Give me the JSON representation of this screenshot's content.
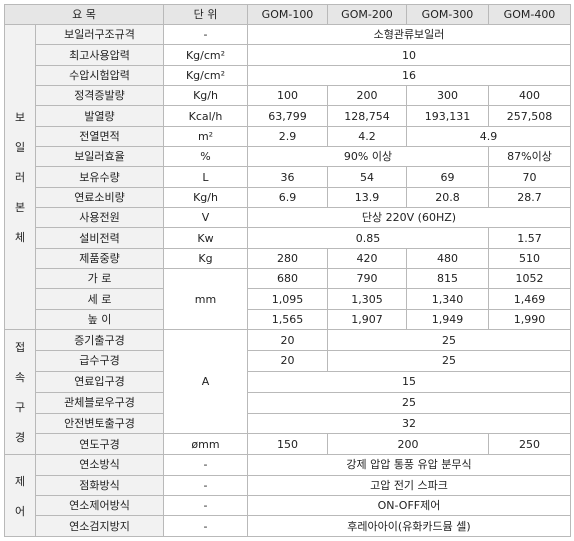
{
  "header": {
    "item": "요 목",
    "unit": "단 위",
    "models": [
      "GOM-100",
      "GOM-200",
      "GOM-300",
      "GOM-400"
    ]
  },
  "groups": {
    "body": [
      "보",
      "일",
      "러",
      "본",
      "체"
    ],
    "connection": [
      "접",
      "속",
      "구",
      "경"
    ],
    "control": [
      "제",
      "어"
    ]
  },
  "rows": {
    "r0": {
      "label": "보일러구조규격",
      "unit": "-",
      "v": [
        "소형관류보일러"
      ]
    },
    "r1": {
      "label": "최고사용압력",
      "unit": "Kg/cm²",
      "v": [
        "10"
      ]
    },
    "r2": {
      "label": "수압시험압력",
      "unit": "Kg/cm²",
      "v": [
        "16"
      ]
    },
    "r3": {
      "label": "정격증발량",
      "unit": "Kg/h",
      "v": [
        "100",
        "200",
        "300",
        "400"
      ]
    },
    "r4": {
      "label": "발열량",
      "unit": "Kcal/h",
      "v": [
        "63,799",
        "128,754",
        "193,131",
        "257,508"
      ]
    },
    "r5": {
      "label": "전열면적",
      "unit": "m²",
      "v": [
        "2.9",
        "4.2",
        "4.9"
      ]
    },
    "r6": {
      "label": "보일러효율",
      "unit": "%",
      "v": [
        "90% 이상",
        "87%이상"
      ]
    },
    "r7": {
      "label": "보유수량",
      "unit": "L",
      "v": [
        "36",
        "54",
        "69",
        "70"
      ]
    },
    "r8": {
      "label": "연료소비량",
      "unit": "Kg/h",
      "v": [
        "6.9",
        "13.9",
        "20.8",
        "28.7"
      ]
    },
    "r9": {
      "label": "사용전원",
      "unit": "V",
      "v": [
        "단상 220V (60HZ)"
      ]
    },
    "r10": {
      "label": "설비전력",
      "unit": "Kw",
      "v": [
        "0.85",
        "1.57"
      ]
    },
    "r11": {
      "label": "제품중량",
      "unit": "Kg",
      "v": [
        "280",
        "420",
        "480",
        "510"
      ]
    },
    "r12": {
      "label": "가 로",
      "unit": "mm",
      "v": [
        "680",
        "790",
        "815",
        "1052"
      ]
    },
    "r13": {
      "label": "세 로",
      "v": [
        "1,095",
        "1,305",
        "1,340",
        "1,469"
      ]
    },
    "r14": {
      "label": "높 이",
      "v": [
        "1,565",
        "1,907",
        "1,949",
        "1,990"
      ]
    },
    "r15": {
      "label": "증기출구경",
      "unit": "A",
      "v": [
        "20",
        "25"
      ]
    },
    "r16": {
      "label": "급수구경",
      "v": [
        "20",
        "25"
      ]
    },
    "r17": {
      "label": "연료입구경",
      "v": [
        "15"
      ]
    },
    "r18": {
      "label": "관체블로우구경",
      "v": [
        "25"
      ]
    },
    "r19": {
      "label": "안전변토출구경",
      "v": [
        "32"
      ]
    },
    "r20": {
      "label": "연도구경",
      "unit": "ømm",
      "v": [
        "150",
        "200",
        "250"
      ]
    },
    "r21": {
      "label": "연소방식",
      "unit": "-",
      "v": [
        "강제 압압 통풍 유압 분무식"
      ]
    },
    "r22": {
      "label": "점화방식",
      "unit": "-",
      "v": [
        "고압 전기 스파크"
      ]
    },
    "r23": {
      "label": "연소제어방식",
      "unit": "-",
      "v": [
        "ON-OFF제어"
      ]
    },
    "r24": {
      "label": "연소검지방지",
      "unit": "-",
      "v": [
        "후레아아이(유화카드뮴 셀)"
      ]
    }
  }
}
